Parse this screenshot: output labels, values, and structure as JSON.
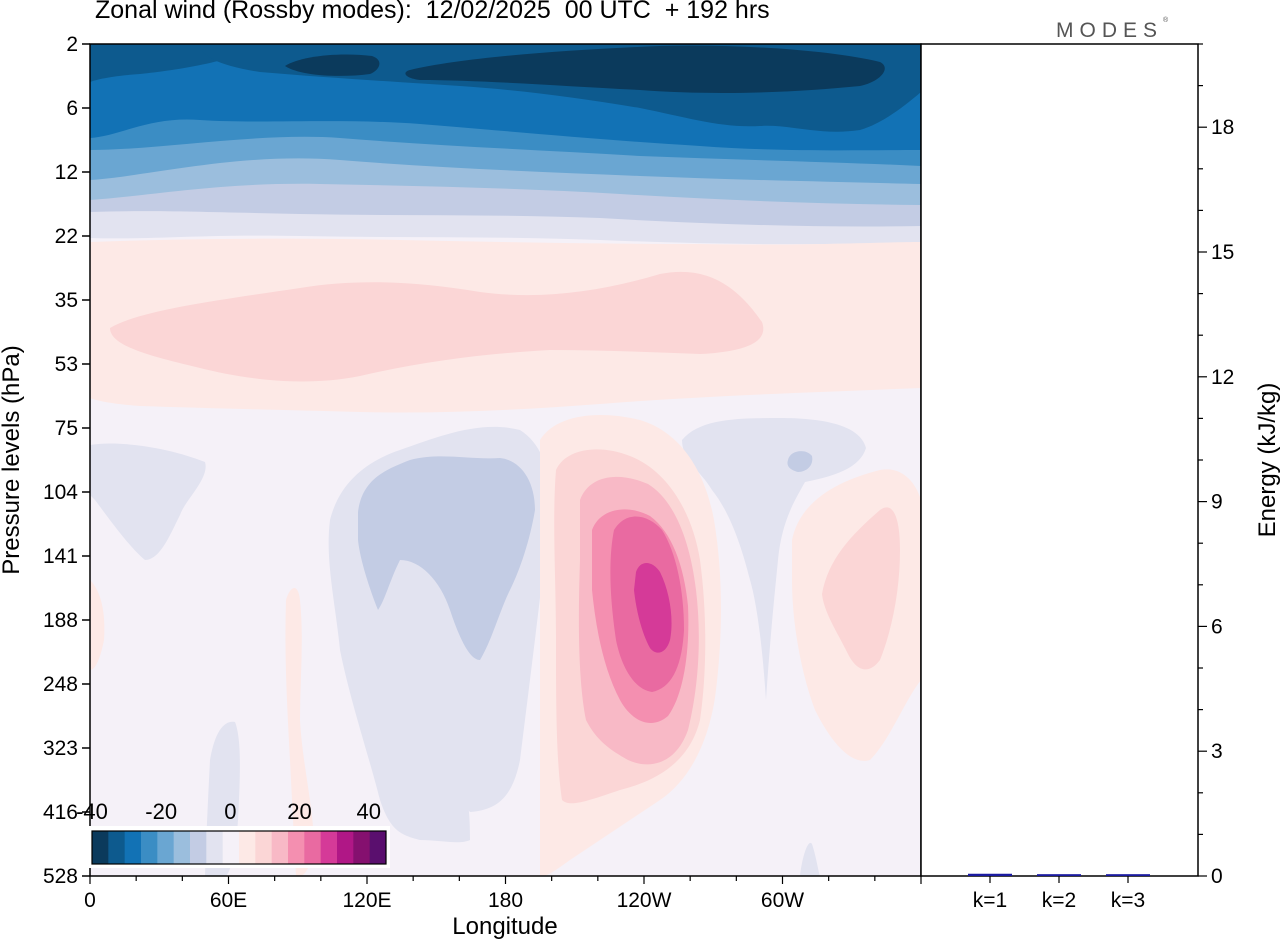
{
  "title": "Zonal wind (Rossby modes):  12/02/2025  00 UTC  + 192 hrs",
  "logo_text": "MODES",
  "logo_mark": "®",
  "chart_data": [
    {
      "type": "heatmap",
      "title": "Zonal wind (Rossby modes):  12/02/2025  00 UTC  + 192 hrs",
      "xlabel": "Longitude",
      "ylabel": "Pressure levels (hPa)",
      "x_ticks": [
        "0",
        "60E",
        "120E",
        "180",
        "120W",
        "60W"
      ],
      "x_tick_degrees": [
        0,
        60,
        120,
        180,
        240,
        300
      ],
      "x_range_degrees": [
        0,
        360
      ],
      "y_ticks": [
        "2",
        "6",
        "12",
        "22",
        "35",
        "53",
        "75",
        "104",
        "141",
        "188",
        "248",
        "323",
        "416",
        "528"
      ],
      "y_scale": "pressure levels, top-down",
      "colorbar": {
        "tick_labels": [
          "-40",
          "-20",
          "0",
          "20",
          "40"
        ],
        "levels": [
          -40,
          -35,
          -30,
          -25,
          -20,
          -15,
          -10,
          -5,
          0,
          5,
          10,
          15,
          20,
          25,
          30,
          35,
          40,
          45
        ],
        "colors": [
          "#0b3a5c",
          "#0d5a8e",
          "#1272b5",
          "#3b8dc4",
          "#6aa6d2",
          "#9bbedd",
          "#c3cce4",
          "#e2e3f0",
          "#f5f1f8",
          "#fde9e6",
          "#fbd6d6",
          "#f8b9c6",
          "#f48fb0",
          "#e96aa1",
          "#d53a98",
          "#b01786",
          "#85106f",
          "#5a0f6e"
        ],
        "placement": "bottom-left"
      },
      "grid": false
    },
    {
      "type": "bar",
      "categories": [
        "k=1",
        "k=2",
        "k=3"
      ],
      "values": [
        0.03,
        0.02,
        0.02
      ],
      "ylabel": "Energy (kJ/kg)",
      "ylim": [
        0,
        20
      ],
      "y_ticks": [
        "0",
        "3",
        "6",
        "9",
        "12",
        "15",
        "18"
      ],
      "bar_color": "#1a1aa0"
    }
  ]
}
